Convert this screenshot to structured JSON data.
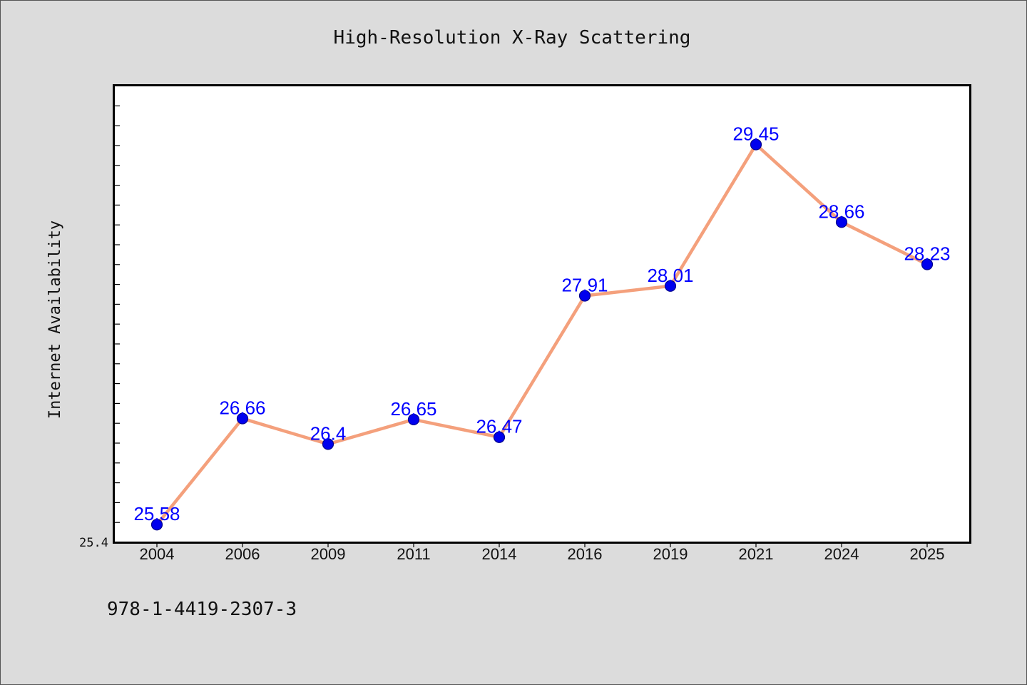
{
  "chart_data": {
    "type": "line",
    "title": "High-Resolution X-Ray Scattering",
    "xlabel": "",
    "ylabel": "Internet Availability",
    "categories": [
      "2004",
      "2006",
      "2009",
      "2011",
      "2014",
      "2016",
      "2019",
      "2021",
      "2024",
      "2025"
    ],
    "series": [
      {
        "values": [
          25.58,
          26.66,
          26.4,
          26.65,
          26.47,
          27.91,
          28.01,
          29.45,
          28.66,
          28.23
        ],
        "labels": [
          "25.58",
          "26.66",
          "26.4",
          "26.65",
          "26.47",
          "27.91",
          "28.01",
          "29.45",
          "28.66",
          "28.23"
        ]
      }
    ],
    "ylim": [
      25.4,
      30.05
    ],
    "y_tick_labels": [
      {
        "value": 25.4,
        "label": "25.4"
      }
    ],
    "grid": false,
    "colors": {
      "line": "#f4a07c",
      "marker": "#0000ee",
      "marker_edge": "#00008b",
      "data_label": "#0000ff",
      "plot_background": "#ffffff",
      "figure_background": "#dcdcdc"
    }
  },
  "footnote": "978-1-4419-2307-3"
}
